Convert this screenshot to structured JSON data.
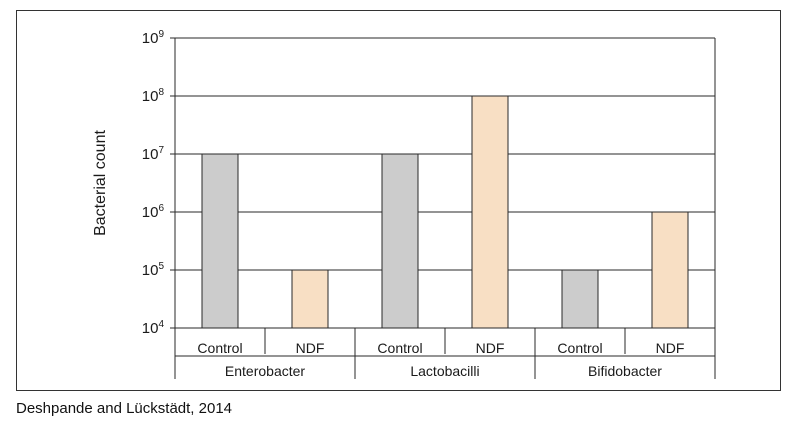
{
  "caption": "Deshpande and Lückstädt, 2014",
  "chart_data": {
    "type": "bar",
    "title": "",
    "xlabel": "",
    "ylabel": "Bacterial count",
    "yscale": "log",
    "ylim": [
      10000,
      1000000000
    ],
    "yticks": [
      {
        "base": "10",
        "exp": "4",
        "value": 10000
      },
      {
        "base": "10",
        "exp": "5",
        "value": 100000
      },
      {
        "base": "10",
        "exp": "6",
        "value": 1000000
      },
      {
        "base": "10",
        "exp": "7",
        "value": 10000000
      },
      {
        "base": "10",
        "exp": "8",
        "value": 100000000
      },
      {
        "base": "10",
        "exp": "9",
        "value": 1000000000
      }
    ],
    "grid": true,
    "groups": [
      "Enterobacter",
      "Lactobacilli",
      "Bifidobacter"
    ],
    "series": [
      {
        "name": "Control",
        "color": "#cccccc",
        "values": [
          10000000,
          10000000,
          100000
        ]
      },
      {
        "name": "NDF",
        "color": "#f8dfc4",
        "values": [
          100000,
          100000000,
          1000000
        ]
      }
    ]
  }
}
